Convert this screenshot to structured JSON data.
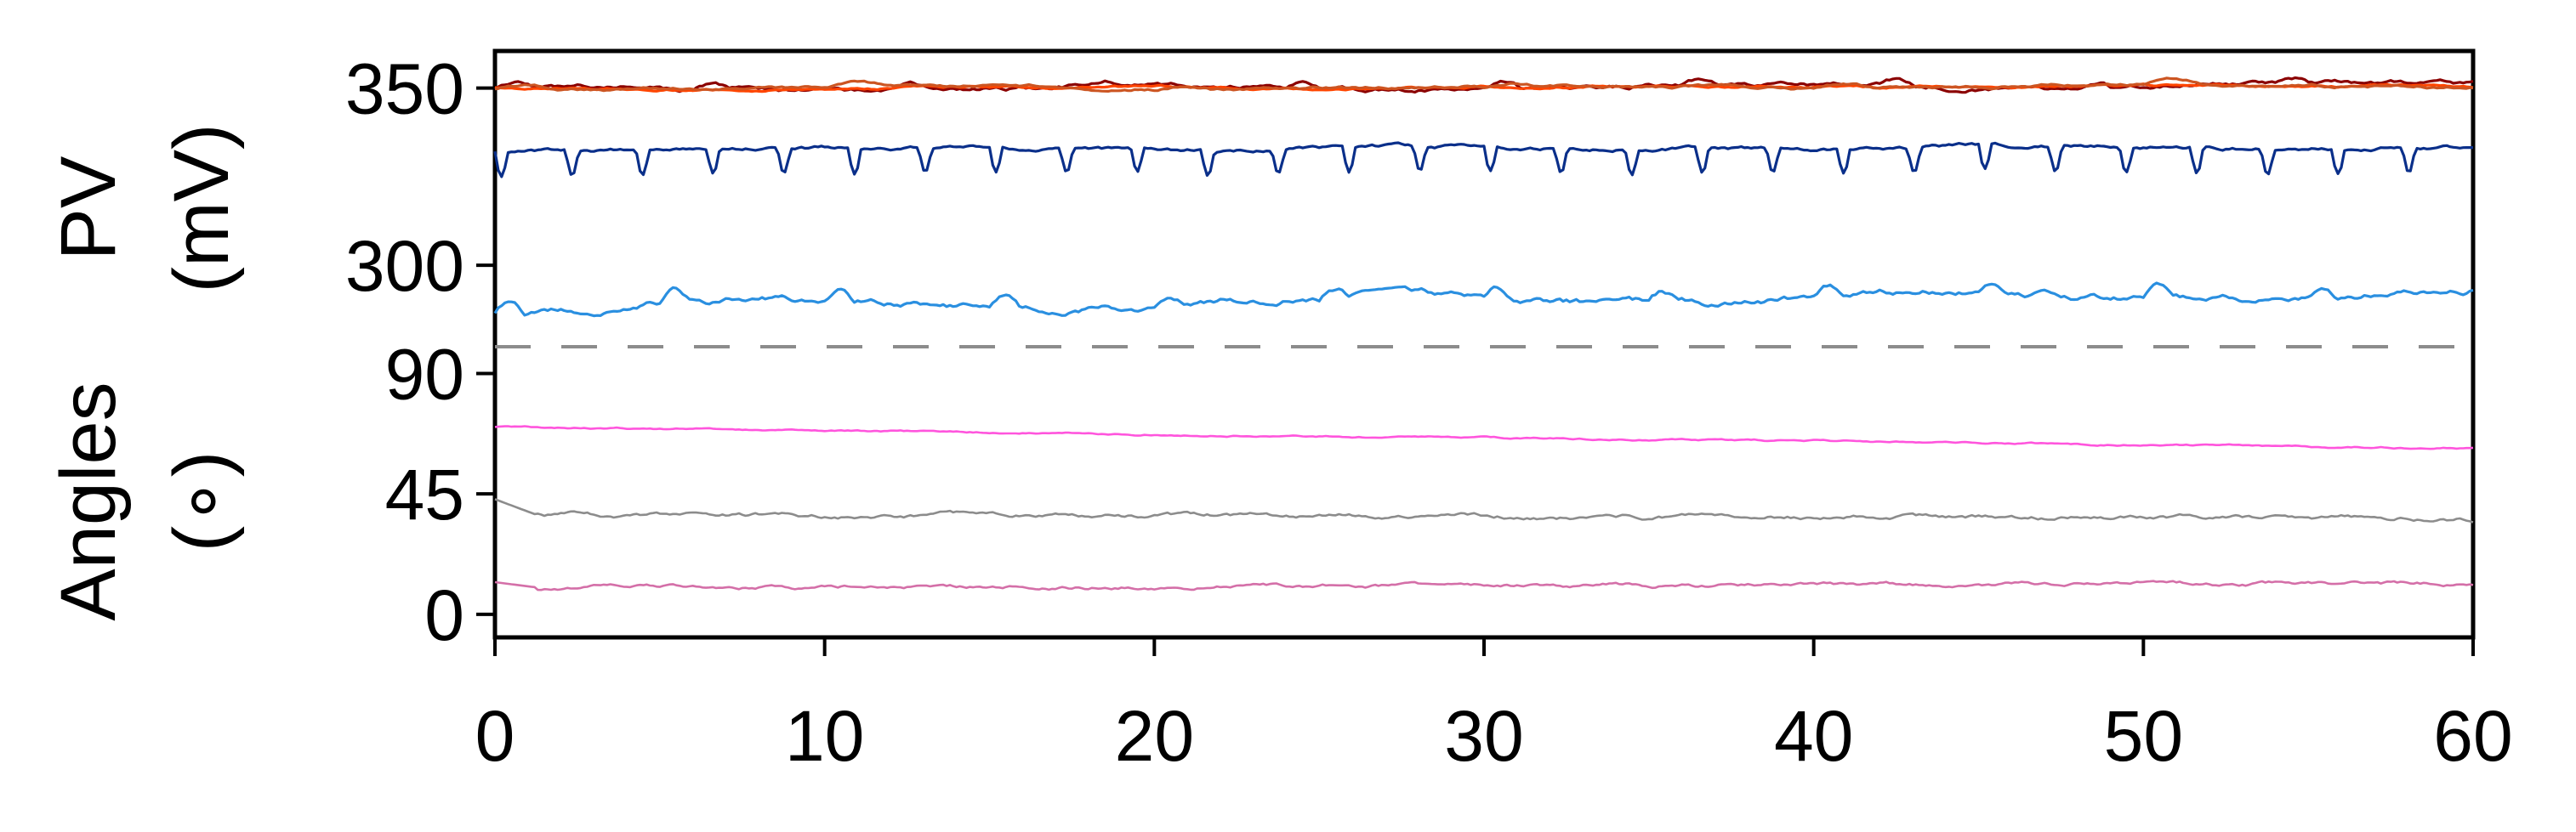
{
  "chart_data": {
    "type": "line",
    "x_range": [
      0,
      60
    ],
    "x_ticks": [
      0,
      10,
      20,
      30,
      40,
      50,
      60
    ],
    "panels": [
      {
        "id": "pv",
        "ylabel_line1": "PV",
        "ylabel_line2": "(mV)",
        "y_range": [
          277,
          360
        ],
        "y_ticks": [
          300,
          350
        ],
        "series": [
          {
            "color": "#8B0000",
            "base": 349.5,
            "drift": 1.5,
            "noise": 0.6,
            "spikes": 10,
            "spike_amp": 1.5,
            "seed": 1
          },
          {
            "color": "#FF4500",
            "base": 350,
            "drift": 0.6,
            "noise": 0.3,
            "spikes": 0,
            "spike_amp": 0,
            "seed": 2
          },
          {
            "color": "#CC5522",
            "base": 349.8,
            "drift": 1.0,
            "noise": 0.4,
            "spikes": 6,
            "spike_amp": 1.0,
            "seed": 3
          },
          {
            "color": "#0A2F8A",
            "base": 332.5,
            "drift": 1.0,
            "noise": 0.5,
            "spikes": 28,
            "spike_amp": -7,
            "seed": 4
          },
          {
            "color": "#2A8FE0",
            "base": 288,
            "drift": 4.0,
            "noise": 0.9,
            "spikes": 12,
            "spike_amp": 3,
            "seed": 5
          }
        ]
      },
      {
        "id": "angles",
        "ylabel_line1": "Angles",
        "ylabel_line2": "(∘)",
        "y_range": [
          -8,
          100
        ],
        "y_ticks": [
          0,
          45,
          90
        ],
        "series": [
          {
            "color": "#FF55DD",
            "start": 70,
            "end": 62,
            "noise": 0.3,
            "seed": 6
          },
          {
            "color": "#8C8C8C",
            "start": 37,
            "end": 36,
            "noise": 0.8,
            "seed": 7,
            "initial": 43
          },
          {
            "color": "#D46FA8",
            "start": 10,
            "end": 11.5,
            "noise": 0.7,
            "seed": 8,
            "initial": 12
          }
        ]
      }
    ],
    "separator": {
      "style": "dashed",
      "color": "#8C8C8C"
    }
  }
}
